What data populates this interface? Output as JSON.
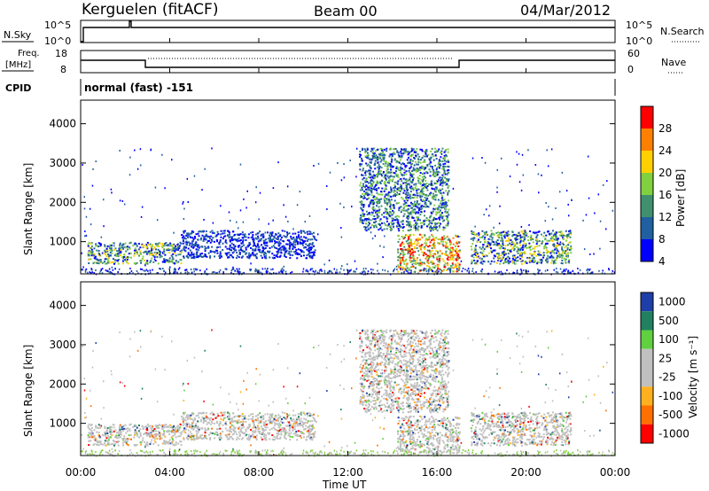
{
  "header": {
    "station": "Kerguelen (fitACF)",
    "beam": "Beam 00",
    "date": "04/Mar/2012"
  },
  "top_panels": {
    "nsky_label": "N.Sky",
    "nsky_ticks": [
      "10^5",
      "10^0"
    ],
    "nsearch_label": "N.Search",
    "nsearch_ticks": [
      "10^5",
      "10^0"
    ],
    "freq_label_line1": "Freq.",
    "freq_label_line2": "[MHz]",
    "freq_ticks": [
      "18",
      "8"
    ],
    "nave_label": "Nave",
    "nave_ticks": [
      "60",
      "0"
    ],
    "cpid_label": "CPID",
    "cpid_text": "normal (fast) -151"
  },
  "x_axis": {
    "label": "Time UT",
    "ticks": [
      "00:00",
      "04:00",
      "08:00",
      "12:00",
      "16:00",
      "20:00",
      "00:00"
    ]
  },
  "chart_data": [
    {
      "type": "heatmap",
      "name": "power",
      "ylabel": "Slant Range [km]",
      "yticks": [
        1000,
        2000,
        3000,
        4000
      ],
      "ylim": [
        180,
        4600
      ],
      "xlim_hours": [
        0,
        24
      ],
      "colorbar_label": "Power [dB]",
      "colorbar_ticks": [
        "28",
        "24",
        "20",
        "16",
        "12",
        "8",
        "4"
      ],
      "colorbar_colors": [
        "#ff0000",
        "#ff8000",
        "#ffd000",
        "#80d040",
        "#409070",
        "#2060a0",
        "#0000ff"
      ],
      "echo_regions": [
        {
          "t0": 0.3,
          "t1": 4.5,
          "r0": 450,
          "r1": 1000,
          "level": "mixed"
        },
        {
          "t0": 4.5,
          "t1": 10.5,
          "r0": 600,
          "r1": 1300,
          "level": "weak"
        },
        {
          "t0": 12.5,
          "t1": 16.5,
          "r0": 1300,
          "r1": 3400,
          "level": "medium"
        },
        {
          "t0": 14.2,
          "t1": 17.0,
          "r0": 250,
          "r1": 1200,
          "level": "strong"
        },
        {
          "t0": 17.5,
          "t1": 22.0,
          "r0": 450,
          "r1": 1300,
          "level": "mixed"
        }
      ]
    },
    {
      "type": "heatmap",
      "name": "velocity",
      "ylabel": "Slant Range [km]",
      "yticks": [
        1000,
        2000,
        3000,
        4000
      ],
      "ylim": [
        180,
        4600
      ],
      "xlim_hours": [
        0,
        24
      ],
      "colorbar_label": "Velocity [m s⁻¹]",
      "colorbar_ticks": [
        "1000",
        "500",
        "100",
        "25",
        "-25",
        "-100",
        "-500",
        "-1000"
      ],
      "colorbar_colors": [
        "#1f3fa8",
        "#208060",
        "#60d040",
        "#c0c0c0",
        "#c0c0c0",
        "#ffb020",
        "#ff7000",
        "#ff0000"
      ]
    }
  ],
  "colors": {
    "gray_echo": "#bebebe",
    "ground_scatter": "#c0c0c0"
  }
}
